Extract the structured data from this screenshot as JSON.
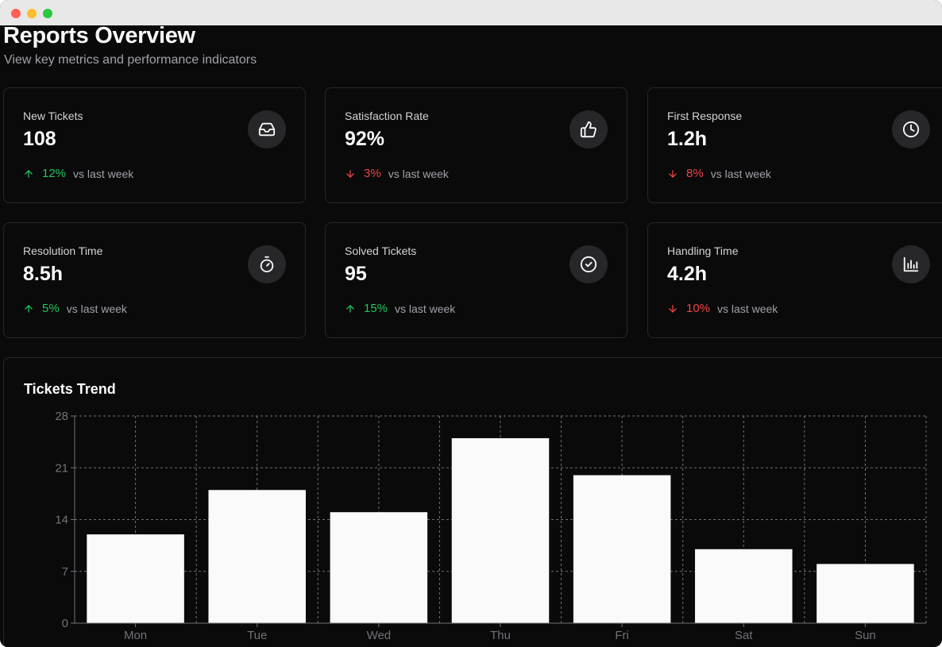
{
  "page": {
    "title": "Reports Overview",
    "subtitle": "View key metrics and performance indicators"
  },
  "colors": {
    "positive": "#22c55e",
    "negative": "#ef4444",
    "bar": "#fafafa",
    "grid": "#71717a"
  },
  "metrics": [
    {
      "label": "New Tickets",
      "value": "108",
      "change": "12%",
      "direction": "up",
      "vs": "vs last week",
      "icon": "inbox-icon"
    },
    {
      "label": "Satisfaction Rate",
      "value": "92%",
      "change": "3%",
      "direction": "down",
      "vs": "vs last week",
      "icon": "thumbs-up-icon"
    },
    {
      "label": "First Response",
      "value": "1.2h",
      "change": "8%",
      "direction": "down",
      "vs": "vs last week",
      "icon": "clock-icon"
    },
    {
      "label": "Resolution Time",
      "value": "8.5h",
      "change": "5%",
      "direction": "up",
      "vs": "vs last week",
      "icon": "timer-icon"
    },
    {
      "label": "Solved Tickets",
      "value": "95",
      "change": "15%",
      "direction": "up",
      "vs": "vs last week",
      "icon": "check-circle-icon"
    },
    {
      "label": "Handling Time",
      "value": "4.2h",
      "change": "10%",
      "direction": "down",
      "vs": "vs last week",
      "icon": "bar-chart-icon"
    }
  ],
  "chart_data": {
    "type": "bar",
    "title": "Tickets Trend",
    "categories": [
      "Mon",
      "Tue",
      "Wed",
      "Thu",
      "Fri",
      "Sat",
      "Sun"
    ],
    "values": [
      12,
      18,
      15,
      25,
      20,
      10,
      8
    ],
    "yticks": [
      "0",
      "7",
      "14",
      "21",
      "28"
    ],
    "ylim": [
      0,
      28
    ],
    "grid": true,
    "xlabel": "",
    "ylabel": ""
  }
}
